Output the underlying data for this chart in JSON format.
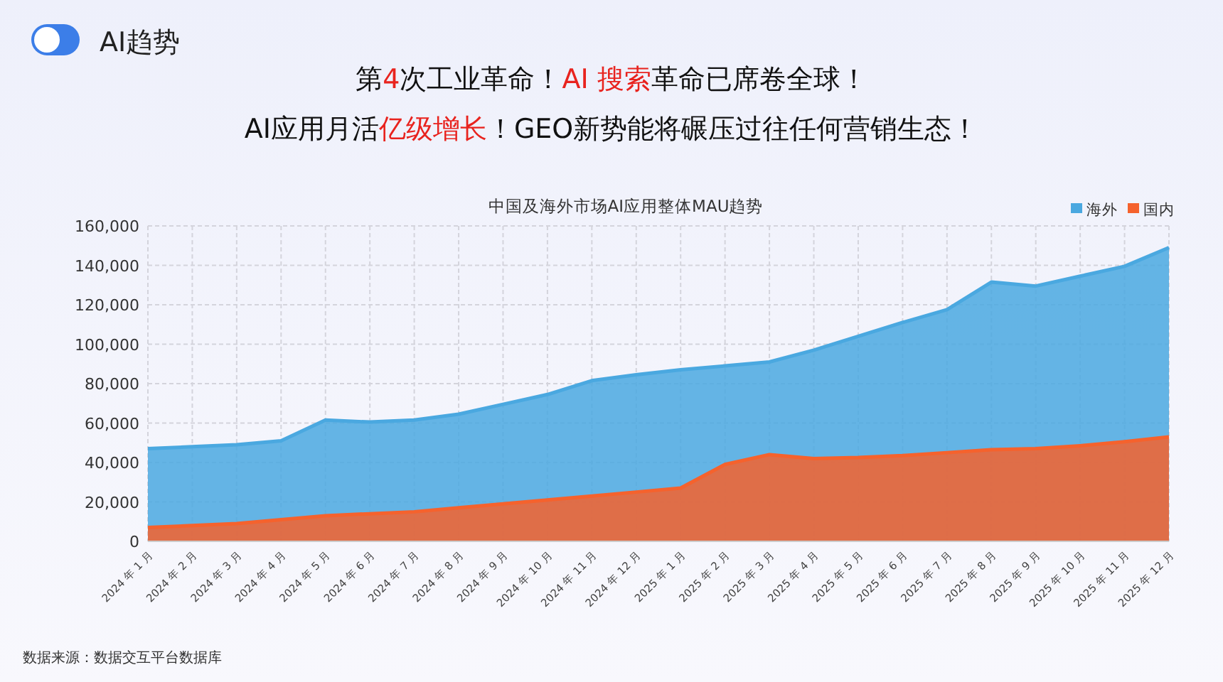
{
  "chart_data": {
    "type": "area",
    "title": "中国及海外市场AI应用整体MAU趋势",
    "categories": [
      "2024 年 1 月",
      "2024 年 2 月",
      "2024 年 3 月",
      "2024 年 4 月",
      "2024 年 5 月",
      "2024 年 6 月",
      "2024 年 7 月",
      "2024 年 8 月",
      "2024 年 9 月",
      "2024 年 10 月",
      "2024 年 11 月",
      "2024 年 12 月",
      "2025 年 1 月",
      "2025 年 2 月",
      "2025 年 3 月",
      "2025 年 4 月",
      "2025 年 5 月",
      "2025 年 6 月",
      "2025 年 7 月",
      "2025 年 8 月",
      "2025 年 9 月",
      "2025 年 10 月",
      "2025 年 11 月",
      "2025 年 12 月"
    ],
    "series": [
      {
        "name": "海外",
        "color": "#4aa8e0",
        "values": [
          47000,
          48000,
          49000,
          51000,
          61500,
          60500,
          61500,
          64500,
          69500,
          74500,
          81500,
          84500,
          87000,
          89000,
          91000,
          97000,
          104000,
          111000,
          117500,
          131500,
          129500,
          134500,
          139500,
          149000
        ]
      },
      {
        "name": "国内",
        "color": "#f5622d",
        "values": [
          7000,
          8000,
          9000,
          11000,
          13000,
          14000,
          15000,
          17000,
          19000,
          21000,
          23000,
          25000,
          27000,
          39000,
          44000,
          42000,
          42500,
          43500,
          45000,
          46500,
          47000,
          48500,
          50500,
          53000
        ]
      }
    ],
    "ylim": [
      0,
      160000
    ],
    "yticks": [
      0,
      {
        "value": 20000,
        "label": "20,000"
      },
      {
        "value": 40000,
        "label": "40,000"
      },
      {
        "value": 60000,
        "label": "60,000"
      },
      {
        "value": 80000,
        "label": "80,000"
      },
      {
        "value": 100000,
        "label": "100,000"
      },
      {
        "value": 120000,
        "label": "120,000"
      },
      {
        "value": 140000,
        "label": "140,000"
      },
      {
        "value": 160000,
        "label": "160,000"
      }
    ],
    "grid": true,
    "legend": "top right",
    "annotations": [
      "AI趋势",
      "第**4**次工业革命！**AI 搜索**革命已席卷全球！",
      "AI应用月活**亿级增长**！GEO新势能将碾压过往任何营销生态！",
      "数据来源：数据交互平台数据库"
    ]
  }
}
